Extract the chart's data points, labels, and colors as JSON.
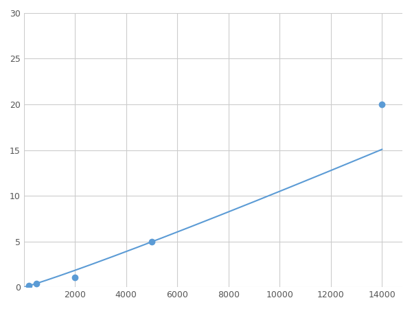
{
  "x_points": [
    200,
    500,
    2000,
    5000,
    14000
  ],
  "y_points": [
    0.2,
    0.4,
    1.1,
    5.0,
    20.0
  ],
  "line_color": "#5b9bd5",
  "marker_color": "#5b9bd5",
  "marker_size": 6,
  "line_width": 1.5,
  "xlim": [
    0,
    14800
  ],
  "ylim": [
    0,
    30
  ],
  "xticks": [
    0,
    2000,
    4000,
    6000,
    8000,
    10000,
    12000,
    14000
  ],
  "yticks": [
    0,
    5,
    10,
    15,
    20,
    25,
    30
  ],
  "xtick_labels": [
    "",
    "2000",
    "4000",
    "6000",
    "8000",
    "10000",
    "12000",
    "14000"
  ],
  "grid_color": "#cccccc",
  "background_color": "#ffffff",
  "figsize": [
    6.0,
    4.5
  ],
  "dpi": 100
}
